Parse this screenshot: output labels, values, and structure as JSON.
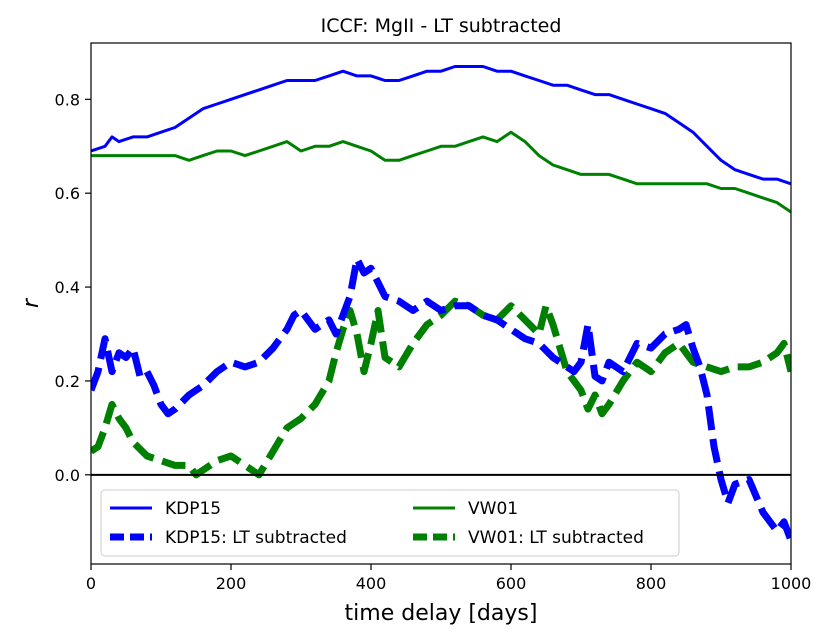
{
  "chart_data": {
    "type": "line",
    "title": "ICCF: MgII - LT subtracted",
    "xlabel": "time delay [days]",
    "ylabel": "r",
    "xlim": [
      0,
      1000
    ],
    "ylim": [
      -0.19,
      0.92
    ],
    "x_ticks": [
      0,
      200,
      400,
      600,
      800,
      1000
    ],
    "y_ticks": [
      0.0,
      0.2,
      0.4,
      0.6,
      0.8
    ],
    "x_tick_labels": [
      "0",
      "200",
      "400",
      "600",
      "800",
      "1000"
    ],
    "y_tick_labels": [
      "0.0",
      "0.2",
      "0.4",
      "0.6",
      "0.8"
    ],
    "reference_line_y": 0.0,
    "grid": false,
    "legend": {
      "position": "lower-left",
      "columns": 2
    },
    "series": [
      {
        "name": "KDP15",
        "color": "#0000ff",
        "style": "solid",
        "x": [
          0,
          20,
          30,
          40,
          60,
          80,
          100,
          120,
          140,
          160,
          180,
          200,
          220,
          240,
          260,
          280,
          300,
          320,
          340,
          360,
          380,
          400,
          420,
          440,
          460,
          480,
          500,
          520,
          540,
          560,
          580,
          600,
          620,
          640,
          660,
          680,
          700,
          720,
          740,
          760,
          780,
          800,
          820,
          840,
          860,
          880,
          900,
          920,
          940,
          960,
          980,
          1000
        ],
        "y": [
          0.69,
          0.7,
          0.72,
          0.71,
          0.72,
          0.72,
          0.73,
          0.74,
          0.76,
          0.78,
          0.79,
          0.8,
          0.81,
          0.82,
          0.83,
          0.84,
          0.84,
          0.84,
          0.85,
          0.86,
          0.85,
          0.85,
          0.84,
          0.84,
          0.85,
          0.86,
          0.86,
          0.87,
          0.87,
          0.87,
          0.86,
          0.86,
          0.85,
          0.84,
          0.83,
          0.83,
          0.82,
          0.81,
          0.81,
          0.8,
          0.79,
          0.78,
          0.77,
          0.75,
          0.73,
          0.7,
          0.67,
          0.65,
          0.64,
          0.63,
          0.63,
          0.62
        ]
      },
      {
        "name": "KDP15: LT subtracted",
        "color": "#0000ff",
        "style": "dashed",
        "x": [
          0,
          10,
          20,
          30,
          40,
          50,
          60,
          70,
          80,
          90,
          100,
          110,
          120,
          140,
          160,
          180,
          200,
          220,
          240,
          260,
          270,
          280,
          290,
          300,
          310,
          320,
          340,
          350,
          360,
          370,
          380,
          390,
          400,
          410,
          420,
          440,
          460,
          480,
          500,
          520,
          540,
          560,
          580,
          600,
          620,
          640,
          660,
          680,
          690,
          700,
          710,
          720,
          730,
          740,
          760,
          780,
          800,
          820,
          840,
          850,
          860,
          870,
          880,
          890,
          900,
          910,
          920,
          940,
          960,
          980,
          990,
          1000
        ],
        "y": [
          0.18,
          0.22,
          0.29,
          0.22,
          0.26,
          0.25,
          0.27,
          0.21,
          0.22,
          0.19,
          0.15,
          0.13,
          0.14,
          0.17,
          0.19,
          0.22,
          0.24,
          0.23,
          0.24,
          0.27,
          0.29,
          0.31,
          0.34,
          0.35,
          0.33,
          0.31,
          0.33,
          0.3,
          0.34,
          0.38,
          0.46,
          0.43,
          0.44,
          0.41,
          0.38,
          0.37,
          0.35,
          0.37,
          0.35,
          0.36,
          0.36,
          0.34,
          0.33,
          0.31,
          0.29,
          0.28,
          0.25,
          0.23,
          0.22,
          0.24,
          0.32,
          0.21,
          0.2,
          0.24,
          0.22,
          0.28,
          0.27,
          0.3,
          0.31,
          0.32,
          0.27,
          0.23,
          0.17,
          0.06,
          -0.01,
          -0.06,
          -0.02,
          -0.01,
          -0.08,
          -0.12,
          -0.1,
          -0.14
        ]
      },
      {
        "name": "VW01",
        "color": "#008000",
        "style": "solid",
        "x": [
          0,
          20,
          40,
          60,
          80,
          100,
          120,
          140,
          160,
          180,
          200,
          220,
          240,
          260,
          280,
          300,
          320,
          340,
          360,
          380,
          400,
          420,
          440,
          460,
          480,
          500,
          520,
          540,
          560,
          580,
          600,
          620,
          640,
          660,
          680,
          700,
          720,
          740,
          760,
          780,
          800,
          820,
          840,
          860,
          880,
          900,
          920,
          940,
          960,
          980,
          1000
        ],
        "y": [
          0.68,
          0.68,
          0.68,
          0.68,
          0.68,
          0.68,
          0.68,
          0.67,
          0.68,
          0.69,
          0.69,
          0.68,
          0.69,
          0.7,
          0.71,
          0.69,
          0.7,
          0.7,
          0.71,
          0.7,
          0.69,
          0.67,
          0.67,
          0.68,
          0.69,
          0.7,
          0.7,
          0.71,
          0.72,
          0.71,
          0.73,
          0.71,
          0.68,
          0.66,
          0.65,
          0.64,
          0.64,
          0.64,
          0.63,
          0.62,
          0.62,
          0.62,
          0.62,
          0.62,
          0.62,
          0.61,
          0.61,
          0.6,
          0.59,
          0.58,
          0.56
        ]
      },
      {
        "name": "VW01: LT subtracted",
        "color": "#008000",
        "style": "dashed",
        "x": [
          0,
          10,
          20,
          30,
          40,
          50,
          60,
          80,
          100,
          120,
          140,
          150,
          160,
          180,
          200,
          220,
          240,
          260,
          280,
          300,
          320,
          340,
          350,
          360,
          370,
          380,
          390,
          400,
          410,
          420,
          440,
          460,
          480,
          500,
          520,
          540,
          560,
          580,
          600,
          620,
          640,
          650,
          660,
          680,
          690,
          700,
          710,
          720,
          730,
          740,
          760,
          780,
          800,
          820,
          840,
          860,
          880,
          900,
          920,
          940,
          960,
          980,
          990,
          1000
        ],
        "y": [
          0.05,
          0.06,
          0.1,
          0.15,
          0.12,
          0.1,
          0.07,
          0.04,
          0.03,
          0.02,
          0.02,
          0.0,
          0.01,
          0.03,
          0.04,
          0.02,
          0.0,
          0.05,
          0.1,
          0.12,
          0.15,
          0.2,
          0.26,
          0.31,
          0.35,
          0.3,
          0.22,
          0.28,
          0.35,
          0.25,
          0.23,
          0.28,
          0.32,
          0.34,
          0.37,
          0.36,
          0.34,
          0.33,
          0.36,
          0.33,
          0.3,
          0.36,
          0.32,
          0.22,
          0.2,
          0.18,
          0.14,
          0.17,
          0.13,
          0.15,
          0.2,
          0.24,
          0.22,
          0.26,
          0.28,
          0.24,
          0.23,
          0.22,
          0.23,
          0.23,
          0.24,
          0.26,
          0.28,
          0.22
        ]
      }
    ]
  }
}
